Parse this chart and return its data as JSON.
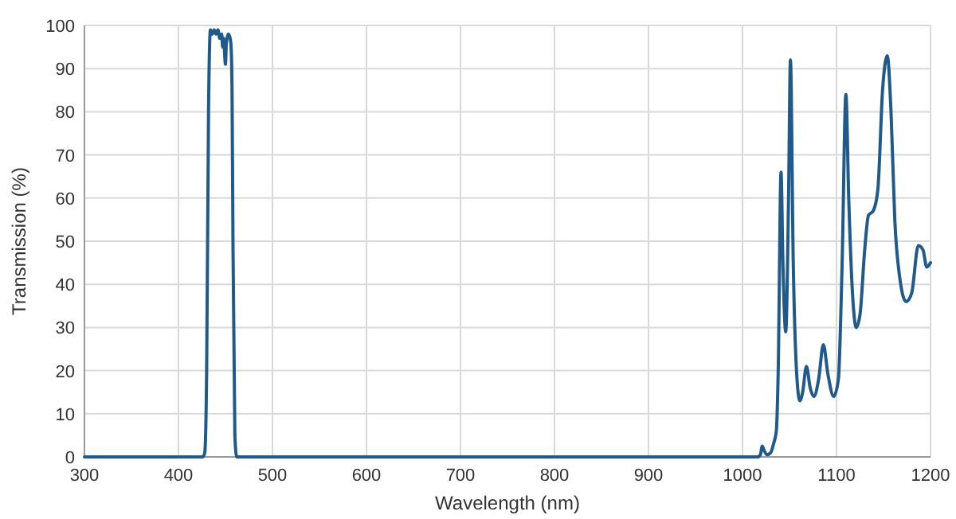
{
  "chart_data": {
    "type": "line",
    "xlabel": "Wavelength (nm)",
    "ylabel": "Transmission (%)",
    "x": [
      300,
      420,
      426,
      428,
      430,
      432,
      434,
      436,
      438,
      440,
      442,
      444,
      446,
      447,
      448,
      450,
      451,
      453,
      455,
      456,
      457,
      458,
      460,
      462,
      470,
      600,
      800,
      1000,
      1016,
      1019,
      1021,
      1023,
      1026,
      1030,
      1033,
      1036,
      1038,
      1041,
      1043,
      1046,
      1049,
      1051,
      1054,
      1058,
      1061,
      1064,
      1068,
      1072,
      1076,
      1081,
      1086,
      1091,
      1097,
      1102,
      1106,
      1110,
      1113,
      1117,
      1121,
      1125,
      1130,
      1134,
      1139,
      1144,
      1149,
      1154,
      1158,
      1162,
      1167,
      1174,
      1180,
      1187,
      1192,
      1196,
      1200
    ],
    "series": [
      {
        "color": "#1f5a8a",
        "values": [
          0,
          0,
          0,
          1,
          20,
          80,
          99,
          98,
          99,
          98,
          99,
          97,
          98,
          95,
          97,
          91,
          96,
          98,
          97,
          95,
          85,
          50,
          5,
          0,
          0,
          0,
          0,
          0,
          0,
          0.5,
          2.5,
          1.5,
          0.5,
          1,
          3,
          6,
          20,
          66,
          45,
          29,
          60,
          92,
          45,
          18,
          13,
          15,
          21,
          16,
          14,
          18,
          26,
          19,
          14,
          18,
          45,
          84,
          60,
          38,
          30,
          33,
          48,
          56,
          57,
          62,
          85,
          93,
          80,
          55,
          42,
          36,
          38,
          49,
          48,
          44,
          45
        ]
      }
    ],
    "xlim": [
      300,
      1200
    ],
    "ylim": [
      0,
      100
    ],
    "xticks": [
      300,
      400,
      500,
      600,
      700,
      800,
      900,
      1000,
      1100,
      1200
    ],
    "yticks": [
      0,
      10,
      20,
      30,
      40,
      50,
      60,
      70,
      80,
      90,
      100
    ],
    "grid": true,
    "marker": "none",
    "line_style": "solid"
  }
}
